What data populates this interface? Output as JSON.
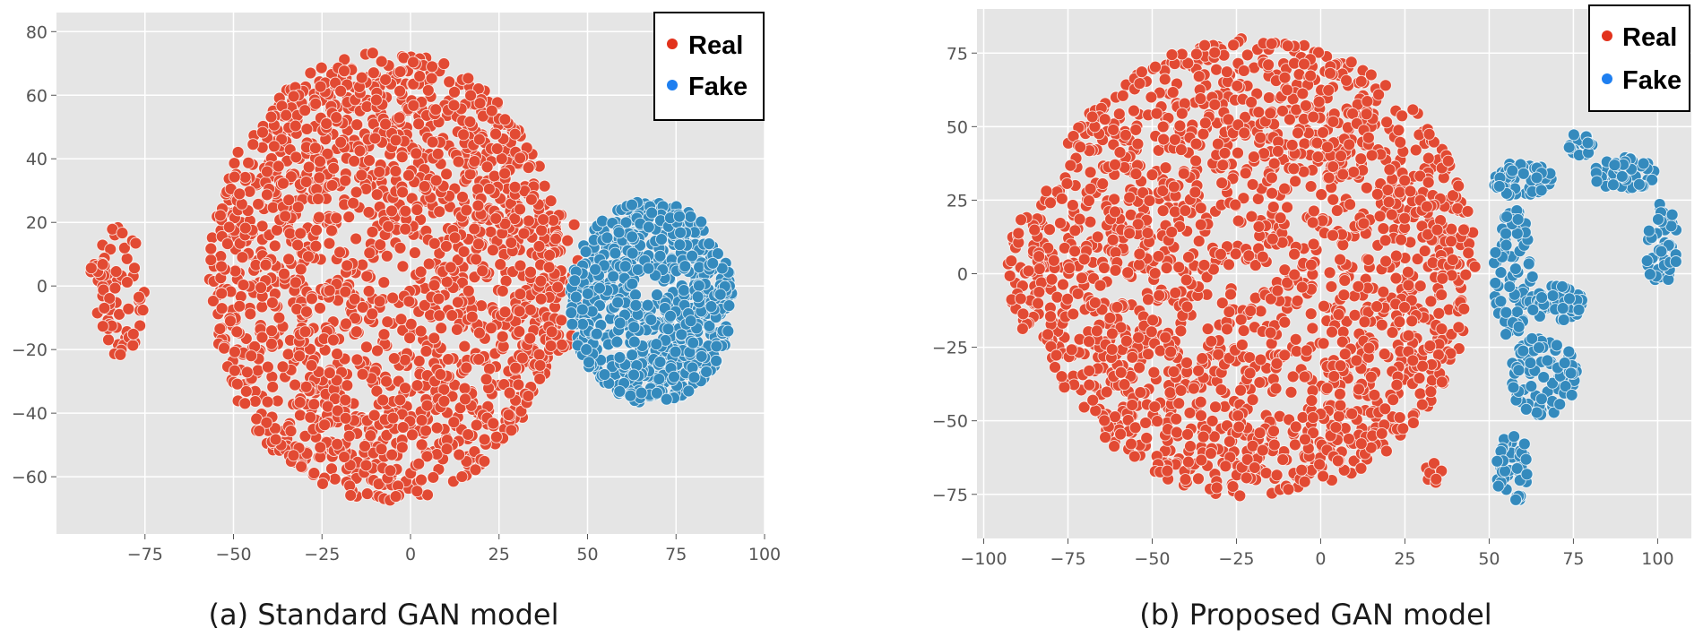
{
  "colors": {
    "real": "#e24a33",
    "fake": "#348abd",
    "legend_real": "#e2321c",
    "legend_fake": "#1e7ff0",
    "background": "#e5e5e5",
    "grid": "#ffffff"
  },
  "chart_data": [
    {
      "type": "scatter",
      "title": "",
      "caption": "(a) Standard GAN model",
      "xlabel": "",
      "ylabel": "",
      "xlim": [
        -100,
        100
      ],
      "ylim": [
        -78,
        86
      ],
      "xticks": [
        -75,
        -50,
        -25,
        0,
        25,
        50,
        75,
        100
      ],
      "yticks": [
        -60,
        -40,
        -20,
        0,
        20,
        40,
        60,
        80
      ],
      "grid": true,
      "legend_position": "top-right",
      "legend": [
        {
          "name": "Real",
          "color_key": "real"
        },
        {
          "name": "Fake",
          "color_key": "fake"
        }
      ],
      "series": [
        {
          "name": "Real",
          "clusters": [
            {
              "cx": -7,
              "cy": 3,
              "rx": 50,
              "ry": 71,
              "n": 1700
            },
            {
              "cx": -82,
              "cy": 0,
              "rx": 7,
              "ry": 22,
              "n": 60
            },
            {
              "cx": -88,
              "cy": 5,
              "rx": 3,
              "ry": 2,
              "n": 10
            },
            {
              "cx": 42,
              "cy": 5,
              "rx": 6,
              "ry": 30,
              "n": 40
            }
          ]
        },
        {
          "name": "Fake",
          "clusters": [
            {
              "cx": 68,
              "cy": -5,
              "rx": 23,
              "ry": 32,
              "n": 700
            }
          ]
        }
      ]
    },
    {
      "type": "scatter",
      "title": "",
      "caption": "(b) Proposed GAN model",
      "xlabel": "",
      "ylabel": "",
      "xlim": [
        -102,
        110
      ],
      "ylim": [
        -90,
        90
      ],
      "xticks": [
        -100,
        -75,
        -50,
        -25,
        0,
        25,
        50,
        75,
        100
      ],
      "yticks": [
        -75,
        -50,
        -25,
        0,
        25,
        50,
        75
      ],
      "grid": true,
      "legend_position": "top-right",
      "legend": [
        {
          "name": "Real",
          "color_key": "real"
        },
        {
          "name": "Fake",
          "color_key": "fake"
        }
      ],
      "series": [
        {
          "name": "Real",
          "clusters": [
            {
              "cx": -20,
              "cy": 2,
              "rx": 66,
              "ry": 78,
              "n": 1800
            },
            {
              "cx": -88,
              "cy": 0,
              "rx": 5,
              "ry": 20,
              "n": 40
            },
            {
              "cx": 33,
              "cy": -68,
              "rx": 3,
              "ry": 4,
              "n": 8
            }
          ]
        },
        {
          "name": "Fake",
          "clusters": [
            {
              "cx": 60,
              "cy": 32,
              "rx": 9,
              "ry": 6,
              "n": 60
            },
            {
              "cx": 57,
              "cy": 0,
              "rx": 6,
              "ry": 22,
              "n": 70
            },
            {
              "cx": 70,
              "cy": -10,
              "rx": 8,
              "ry": 6,
              "n": 50
            },
            {
              "cx": 66,
              "cy": -35,
              "rx": 10,
              "ry": 14,
              "n": 80
            },
            {
              "cx": 57,
              "cy": -66,
              "rx": 5,
              "ry": 12,
              "n": 50
            },
            {
              "cx": 77,
              "cy": 44,
              "rx": 4,
              "ry": 4,
              "n": 20
            },
            {
              "cx": 90,
              "cy": 34,
              "rx": 9,
              "ry": 6,
              "n": 50
            },
            {
              "cx": 101,
              "cy": 10,
              "rx": 5,
              "ry": 14,
              "n": 50
            }
          ]
        }
      ]
    }
  ]
}
